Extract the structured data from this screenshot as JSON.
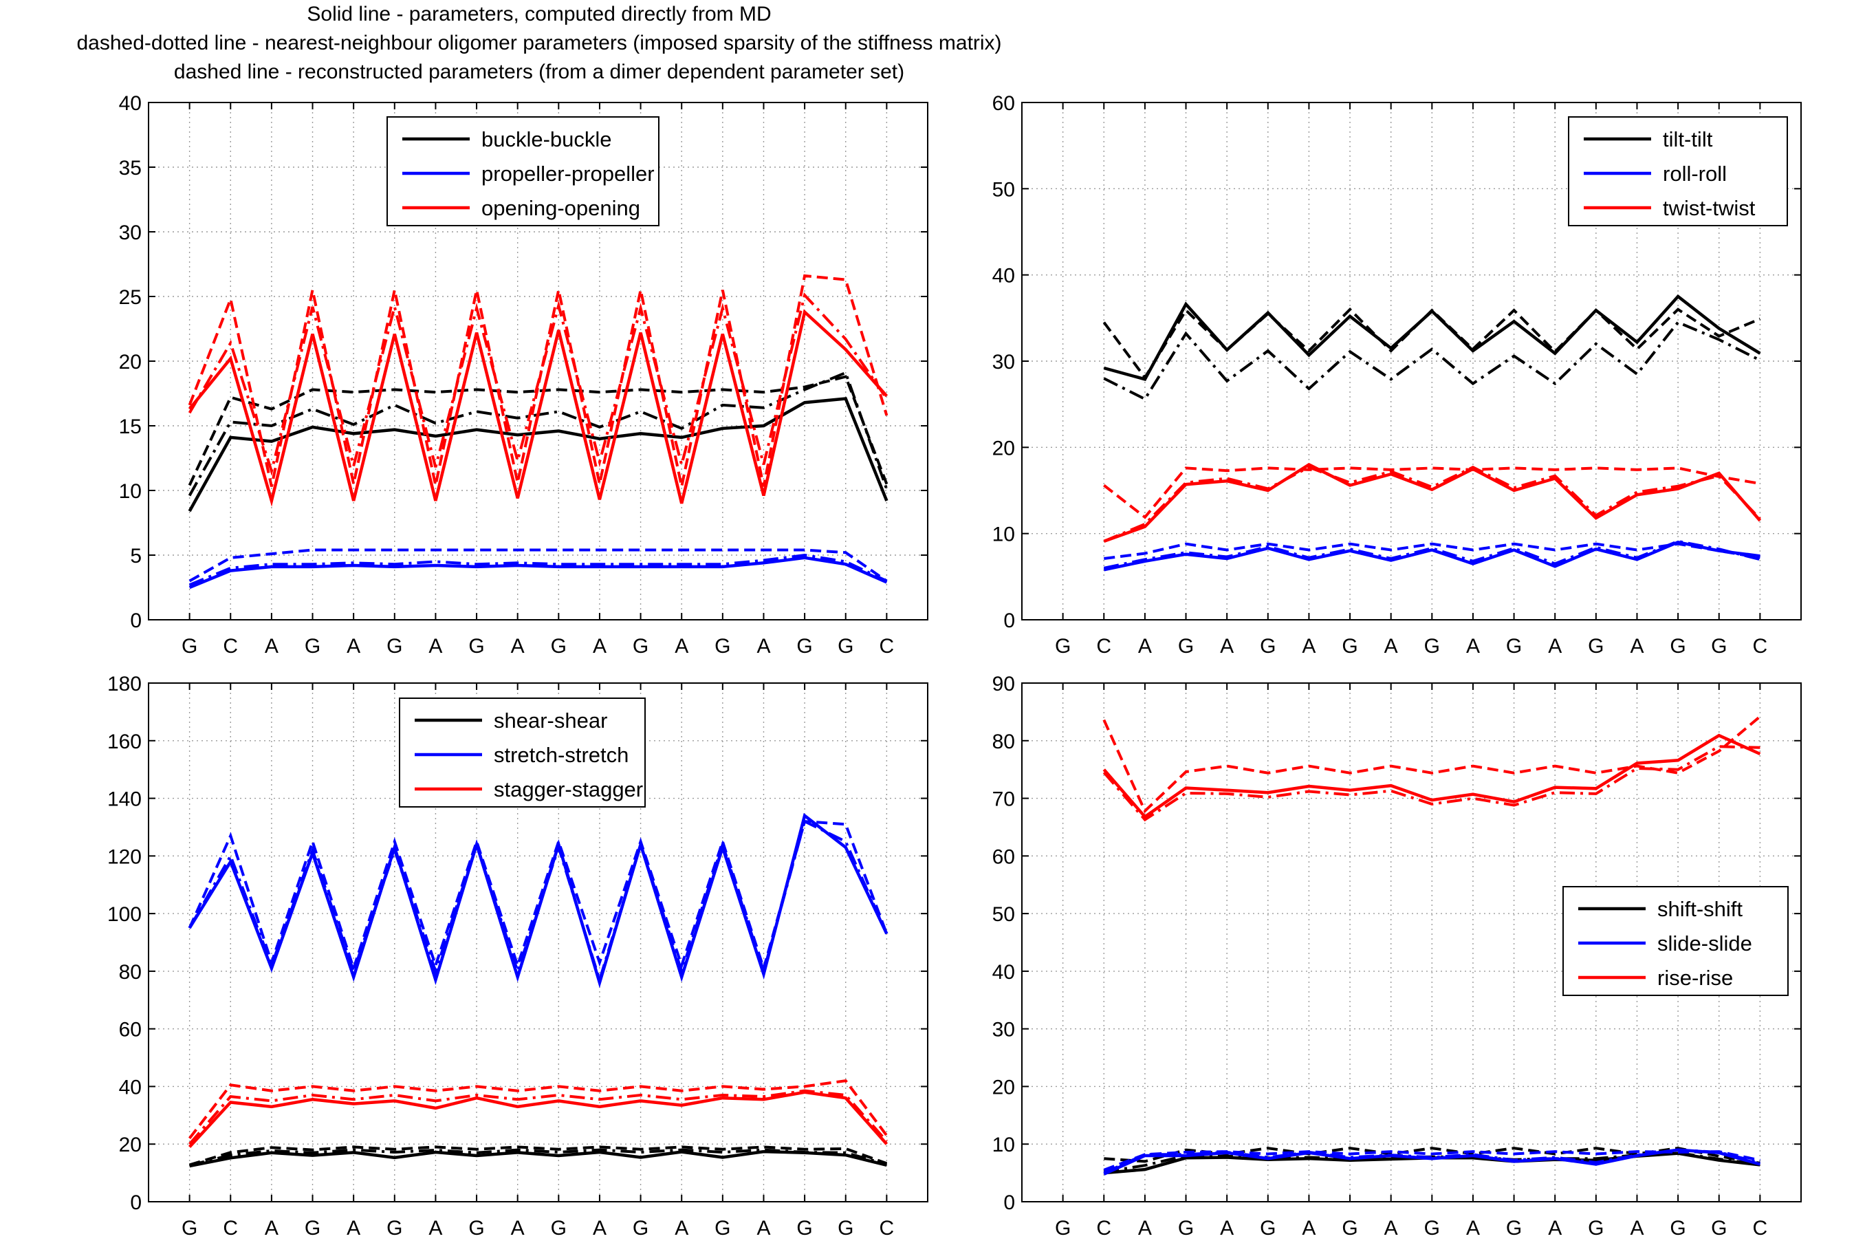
{
  "caption": {
    "line1": "Solid line - parameters, computed directly from MD",
    "line2": "dashed-dotted line - nearest-neighbour oligomer parameters (imposed sparsity of the stiffness matrix)",
    "line3": "dashed line - reconstructed parameters (from a dimer dependent parameter set)"
  },
  "colors": {
    "black": "#000000",
    "blue": "#0000ff",
    "red": "#ff0000",
    "grid": "#9a9a9a"
  },
  "line_styles": [
    "solid",
    "dashed-dotted",
    "dashed"
  ],
  "chart_data": [
    {
      "type": "line",
      "title": "",
      "xlabel": "",
      "ylabel": "",
      "x": [
        "G",
        "C",
        "A",
        "G",
        "A",
        "G",
        "A",
        "G",
        "A",
        "G",
        "A",
        "G",
        "A",
        "G",
        "A",
        "G",
        "G",
        "C"
      ],
      "ylim": [
        0,
        40
      ],
      "yticks": [
        0,
        5,
        10,
        15,
        20,
        25,
        30,
        35,
        40
      ],
      "grid": true,
      "legend_position": "top-center",
      "series": [
        {
          "name": "buckle-buckle",
          "color": "#000000",
          "solid": [
            8.4,
            14.1,
            13.8,
            14.9,
            14.4,
            14.7,
            14.2,
            14.7,
            14.3,
            14.6,
            14.0,
            14.4,
            14.1,
            14.8,
            15.0,
            16.8,
            17.1,
            9.2
          ],
          "dashdot": [
            9.6,
            15.3,
            15.0,
            16.3,
            15.1,
            16.6,
            15.2,
            16.1,
            15.6,
            16.1,
            14.9,
            16.1,
            14.8,
            16.6,
            16.4,
            17.8,
            19.1,
            10.1
          ],
          "dashed": [
            10.4,
            17.2,
            16.3,
            17.8,
            17.6,
            17.8,
            17.6,
            17.8,
            17.6,
            17.8,
            17.6,
            17.8,
            17.6,
            17.8,
            17.6,
            18.0,
            18.8,
            10.5
          ]
        },
        {
          "name": "propeller-propeller",
          "color": "#0000ff",
          "solid": [
            2.5,
            3.8,
            4.1,
            4.1,
            4.2,
            4.1,
            4.2,
            4.1,
            4.2,
            4.1,
            4.1,
            4.1,
            4.1,
            4.1,
            4.4,
            4.8,
            4.3,
            2.9
          ],
          "dashdot": [
            2.7,
            4.0,
            4.3,
            4.3,
            4.4,
            4.3,
            4.5,
            4.3,
            4.4,
            4.3,
            4.3,
            4.3,
            4.3,
            4.3,
            4.6,
            5.0,
            4.5,
            3.0
          ],
          "dashed": [
            3.0,
            4.8,
            5.1,
            5.4,
            5.4,
            5.4,
            5.4,
            5.4,
            5.4,
            5.4,
            5.4,
            5.4,
            5.4,
            5.4,
            5.4,
            5.4,
            5.2,
            3.0
          ]
        },
        {
          "name": "opening-opening",
          "color": "#ff0000",
          "solid": [
            16.3,
            20.2,
            9.2,
            22.1,
            9.2,
            22.1,
            9.2,
            22.2,
            9.4,
            22.4,
            9.3,
            22.2,
            9.0,
            22.1,
            9.6,
            23.8,
            20.9,
            17.3
          ],
          "dashdot": [
            16.0,
            21.4,
            11.5,
            24.2,
            11.9,
            24.2,
            11.8,
            24.1,
            12.3,
            24.3,
            12.2,
            24.1,
            12.0,
            24.1,
            12.0,
            25.1,
            21.7,
            17.1
          ],
          "dashed": [
            16.6,
            24.8,
            10.3,
            25.5,
            10.5,
            25.5,
            10.4,
            25.5,
            10.6,
            25.5,
            10.5,
            25.5,
            10.3,
            25.5,
            10.3,
            26.6,
            26.3,
            15.8
          ]
        }
      ]
    },
    {
      "type": "line",
      "title": "",
      "xlabel": "",
      "ylabel": "",
      "x": [
        "G",
        "C",
        "A",
        "G",
        "A",
        "G",
        "A",
        "G",
        "A",
        "G",
        "A",
        "G",
        "A",
        "G",
        "A",
        "G",
        "G",
        "C"
      ],
      "ylim": [
        0,
        60
      ],
      "yticks": [
        0,
        10,
        20,
        30,
        40,
        50,
        60
      ],
      "grid": true,
      "legend_position": "top-right",
      "series": [
        {
          "name": "tilt-tilt",
          "color": "#000000",
          "solid": [
            null,
            29.2,
            27.9,
            36.6,
            31.3,
            35.6,
            30.7,
            35.2,
            31.5,
            35.8,
            31.2,
            34.6,
            30.9,
            35.9,
            32.2,
            37.5,
            33.8,
            30.9
          ],
          "dashdot": [
            null,
            28.0,
            25.6,
            33.2,
            27.7,
            31.2,
            26.8,
            31.1,
            27.9,
            31.4,
            27.4,
            30.6,
            27.4,
            32.0,
            28.5,
            34.5,
            32.5,
            30.1
          ],
          "dashed": [
            null,
            34.5,
            28.1,
            35.9,
            31.3,
            35.5,
            31.2,
            36.0,
            31.2,
            35.9,
            31.4,
            35.9,
            31.1,
            35.9,
            31.4,
            36.0,
            32.9,
            34.9
          ]
        },
        {
          "name": "roll-roll",
          "color": "#0000ff",
          "solid": [
            null,
            5.8,
            6.8,
            7.6,
            7.1,
            8.3,
            7.0,
            8.0,
            6.9,
            8.1,
            6.5,
            8.1,
            6.2,
            8.2,
            7.0,
            9.0,
            8.0,
            7.4
          ],
          "dashdot": [
            null,
            6.0,
            7.0,
            7.8,
            7.3,
            8.5,
            7.2,
            8.2,
            7.1,
            8.3,
            6.8,
            8.3,
            6.5,
            8.4,
            7.2,
            9.1,
            8.2,
            7.0
          ],
          "dashed": [
            null,
            7.1,
            7.7,
            8.8,
            8.1,
            8.8,
            8.1,
            8.8,
            8.1,
            8.8,
            8.1,
            8.8,
            8.1,
            8.8,
            8.1,
            8.8,
            8.0,
            7.2
          ]
        },
        {
          "name": "twist-twist",
          "color": "#ff0000",
          "solid": [
            null,
            9.1,
            10.8,
            15.7,
            16.1,
            15.0,
            18.0,
            15.6,
            16.9,
            15.1,
            17.5,
            15.0,
            16.4,
            11.8,
            14.5,
            15.2,
            17.0,
            11.5
          ],
          "dashdot": [
            null,
            9.1,
            11.1,
            15.9,
            16.4,
            15.2,
            17.7,
            15.9,
            17.2,
            15.4,
            17.7,
            15.3,
            16.7,
            12.1,
            14.8,
            15.5,
            16.7,
            11.7
          ],
          "dashed": [
            null,
            15.6,
            11.9,
            17.6,
            17.3,
            17.6,
            17.4,
            17.6,
            17.4,
            17.6,
            17.4,
            17.6,
            17.4,
            17.6,
            17.4,
            17.6,
            16.6,
            15.8
          ]
        }
      ]
    },
    {
      "type": "line",
      "title": "",
      "xlabel": "",
      "ylabel": "",
      "x": [
        "G",
        "C",
        "A",
        "G",
        "A",
        "G",
        "A",
        "G",
        "A",
        "G",
        "A",
        "G",
        "A",
        "G",
        "A",
        "G",
        "G",
        "C"
      ],
      "ylim": [
        0,
        180
      ],
      "yticks": [
        0,
        20,
        40,
        60,
        80,
        100,
        120,
        140,
        160,
        180
      ],
      "grid": true,
      "legend_position": "top-center",
      "series": [
        {
          "name": "shear-shear",
          "color": "#000000",
          "solid": [
            12.4,
            15.2,
            17.0,
            16.1,
            17.1,
            15.3,
            17.2,
            16.0,
            17.1,
            16.0,
            17.2,
            15.4,
            17.3,
            15.4,
            17.4,
            17.0,
            16.2,
            12.7
          ],
          "dashdot": [
            12.6,
            16.2,
            17.7,
            17.0,
            18.0,
            17.2,
            17.9,
            17.0,
            18.0,
            17.2,
            18.0,
            17.2,
            18.0,
            17.2,
            18.0,
            17.2,
            17.0,
            13.0
          ],
          "dashed": [
            12.8,
            17.1,
            18.8,
            18.0,
            19.0,
            18.2,
            19.0,
            18.2,
            19.0,
            18.2,
            19.0,
            18.2,
            19.0,
            18.2,
            19.0,
            18.2,
            18.4,
            13.3
          ]
        },
        {
          "name": "stretch-stretch",
          "color": "#0000ff",
          "solid": [
            95,
            118,
            81,
            121,
            78,
            123,
            77,
            124,
            78,
            124,
            76,
            124,
            78,
            123,
            79,
            134,
            123,
            93
          ],
          "dashdot": [
            95,
            120,
            82,
            122,
            80,
            122,
            80,
            124,
            80,
            123,
            77,
            124,
            80,
            124,
            80,
            132,
            125,
            93
          ],
          "dashed": [
            95,
            127,
            83,
            125,
            81,
            125,
            82,
            125,
            82,
            125,
            83,
            125,
            82,
            125,
            81,
            132,
            131,
            93
          ]
        },
        {
          "name": "stagger-stagger",
          "color": "#ff0000",
          "solid": [
            19,
            34.5,
            33,
            35.5,
            34,
            35,
            32.5,
            36,
            33,
            35,
            33,
            35,
            33.5,
            36,
            35.5,
            38,
            36,
            20
          ],
          "dashdot": [
            20,
            36.5,
            35,
            37,
            35.5,
            37,
            35,
            37,
            35.5,
            37,
            35.5,
            37,
            35.5,
            37,
            36.5,
            38.5,
            37,
            21
          ],
          "dashed": [
            22,
            40.5,
            38.5,
            40,
            38.5,
            40,
            38.5,
            40,
            38.5,
            40,
            38.5,
            40,
            38.5,
            40,
            39,
            40,
            42,
            23
          ]
        }
      ]
    },
    {
      "type": "line",
      "title": "",
      "xlabel": "",
      "ylabel": "",
      "x": [
        "G",
        "C",
        "A",
        "G",
        "A",
        "G",
        "A",
        "G",
        "A",
        "G",
        "A",
        "G",
        "A",
        "G",
        "A",
        "G",
        "G",
        "C"
      ],
      "ylim": [
        0,
        90
      ],
      "yticks": [
        0,
        10,
        20,
        30,
        40,
        50,
        60,
        70,
        80,
        90
      ],
      "grid": true,
      "legend_position": "middle-right",
      "series": [
        {
          "name": "shift-shift",
          "color": "#000000",
          "solid": [
            null,
            5.0,
            5.6,
            7.6,
            7.7,
            7.3,
            7.5,
            7.2,
            7.4,
            7.6,
            7.6,
            7.0,
            7.3,
            7.2,
            7.9,
            8.4,
            7.2,
            6.4
          ],
          "dashdot": [
            null,
            5.2,
            6.3,
            8.0,
            7.9,
            7.6,
            7.7,
            7.5,
            7.7,
            7.8,
            7.8,
            7.3,
            7.5,
            7.5,
            8.1,
            8.5,
            7.4,
            6.5
          ],
          "dashed": [
            null,
            7.5,
            7.0,
            9.0,
            8.3,
            9.3,
            8.3,
            9.3,
            8.3,
            9.3,
            8.3,
            9.3,
            8.3,
            9.3,
            8.3,
            9.3,
            7.9,
            6.7
          ]
        },
        {
          "name": "slide-slide",
          "color": "#0000ff",
          "solid": [
            null,
            4.8,
            8.0,
            8.0,
            8.5,
            7.5,
            8.5,
            7.5,
            8.0,
            7.5,
            8.0,
            7.0,
            7.5,
            6.5,
            8.0,
            9.0,
            8.5,
            6.5
          ],
          "dashdot": [
            null,
            5.0,
            8.2,
            8.2,
            8.6,
            7.7,
            8.6,
            7.7,
            8.1,
            7.7,
            8.2,
            7.2,
            7.7,
            6.8,
            8.1,
            9.0,
            8.6,
            6.8
          ],
          "dashed": [
            null,
            5.5,
            8.2,
            8.6,
            8.7,
            8.3,
            8.7,
            8.3,
            8.7,
            8.3,
            8.7,
            8.3,
            8.7,
            8.3,
            8.7,
            8.6,
            8.7,
            7.2
          ]
        },
        {
          "name": "rise-rise",
          "color": "#ff0000",
          "solid": [
            null,
            75.0,
            66.8,
            71.8,
            71.4,
            71.0,
            72.1,
            71.4,
            72.2,
            69.7,
            70.7,
            69.4,
            71.9,
            71.7,
            76.1,
            76.6,
            80.9,
            77.7
          ],
          "dashdot": [
            null,
            74.5,
            66.3,
            70.9,
            70.8,
            70.2,
            71.2,
            70.6,
            71.3,
            69.0,
            70.0,
            68.8,
            71.0,
            70.8,
            75.2,
            75.0,
            79.0,
            78.8
          ],
          "dashed": [
            null,
            83.6,
            67.8,
            74.6,
            75.6,
            74.4,
            75.6,
            74.4,
            75.6,
            74.4,
            75.6,
            74.4,
            75.6,
            74.4,
            75.6,
            74.4,
            78.2,
            84.2
          ]
        }
      ]
    }
  ]
}
